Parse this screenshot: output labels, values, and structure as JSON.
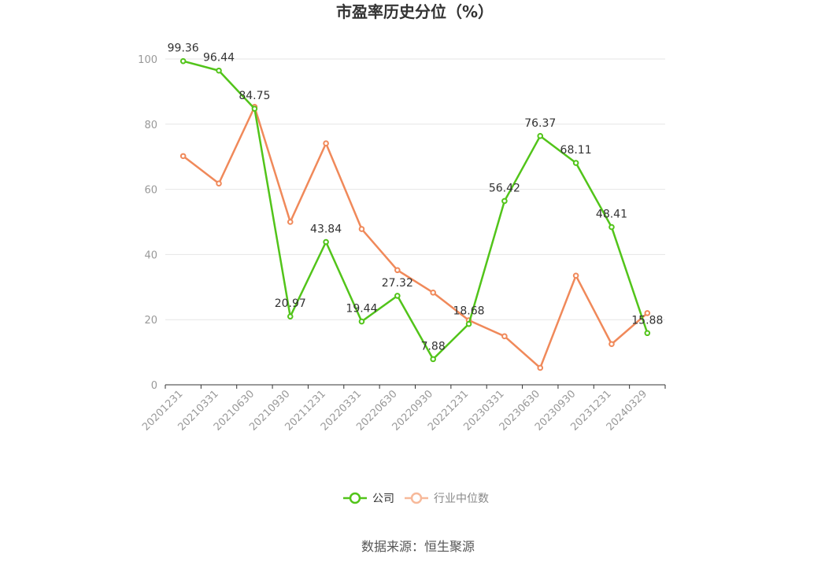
{
  "chart_data": {
    "type": "line",
    "title": "市盈率历史分位（%）",
    "xlabel": "",
    "ylabel": "",
    "ylim": [
      0,
      100
    ],
    "yticks": [
      0,
      20,
      40,
      60,
      80,
      100
    ],
    "grid": true,
    "legend_position": "bottom",
    "categories": [
      "20201231",
      "20210331",
      "20210630",
      "20210930",
      "20211231",
      "20220331",
      "20220630",
      "20220930",
      "20221231",
      "20230331",
      "20230630",
      "20230930",
      "20231231",
      "20240329"
    ],
    "series": [
      {
        "name": "公司",
        "color": "#52c41a",
        "values": [
          99.36,
          96.44,
          84.75,
          20.97,
          43.84,
          19.44,
          27.32,
          7.88,
          18.68,
          56.42,
          76.37,
          68.11,
          48.41,
          15.88
        ],
        "data_labels": [
          "99.36",
          "96.44",
          "84.75",
          "20.97",
          "43.84",
          "19.44",
          "27.32",
          "7.88",
          "18.68",
          "56.42",
          "76.37",
          "68.11",
          "48.41",
          "15.88"
        ]
      },
      {
        "name": "行业中位数",
        "color": "#f0895a",
        "values": [
          70.2,
          61.8,
          85.3,
          50.0,
          74.1,
          47.8,
          35.2,
          28.3,
          19.8,
          14.9,
          5.2,
          33.5,
          12.5,
          22.0
        ]
      }
    ]
  },
  "source": "数据来源：恒生聚源"
}
